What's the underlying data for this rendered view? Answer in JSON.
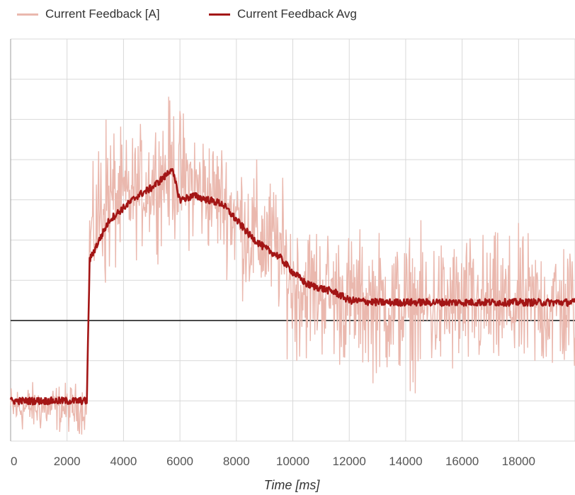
{
  "chart_data": {
    "type": "line",
    "title": "",
    "xlabel": "Time [ms]",
    "ylabel": "",
    "xlim": [
      0,
      20000
    ],
    "ylim": [
      -3,
      7
    ],
    "x_ticks": [
      0,
      2000,
      4000,
      6000,
      8000,
      10000,
      12000,
      14000,
      16000,
      18000
    ],
    "y_tick_labels_shown": false,
    "grid": true,
    "zero_line": 0,
    "legend_position": "top-left",
    "sample_interval_ms": 20,
    "series": [
      {
        "name": "Current Feedback [A]",
        "color": "#eab8ae",
        "style": "noisy raw signal",
        "envelope": [
          {
            "x": 0,
            "low": -2.75,
            "high": -1.6
          },
          {
            "x": 2700,
            "low": -2.75,
            "high": -1.6
          },
          {
            "x": 2800,
            "low": 1.0,
            "high": 3.0
          },
          {
            "x": 3300,
            "low": 0.8,
            "high": 5.2
          },
          {
            "x": 4000,
            "low": 1.6,
            "high": 4.4
          },
          {
            "x": 5000,
            "low": 2.0,
            "high": 4.9
          },
          {
            "x": 5700,
            "low": 2.1,
            "high": 5.4
          },
          {
            "x": 6500,
            "low": 1.9,
            "high": 4.8
          },
          {
            "x": 7500,
            "low": 1.6,
            "high": 4.4
          },
          {
            "x": 8500,
            "low": 0.5,
            "high": 3.8
          },
          {
            "x": 9500,
            "low": 0.2,
            "high": 3.4
          },
          {
            "x": 10000,
            "low": -0.9,
            "high": 2.6
          },
          {
            "x": 11000,
            "low": -0.8,
            "high": 2.3
          },
          {
            "x": 12000,
            "low": -1.1,
            "high": 2.1
          },
          {
            "x": 14000,
            "low": -1.4,
            "high": 2.0
          },
          {
            "x": 16000,
            "low": -1.3,
            "high": 2.0
          },
          {
            "x": 18000,
            "low": -1.3,
            "high": 2.0
          },
          {
            "x": 20000,
            "low": -1.3,
            "high": 2.0
          }
        ]
      },
      {
        "name": "Current Feedback Avg",
        "color": "#a31515",
        "style": "smoothed average",
        "points": [
          {
            "x": 0,
            "y": -2.0
          },
          {
            "x": 2700,
            "y": -2.0
          },
          {
            "x": 2800,
            "y": 1.5
          },
          {
            "x": 3000,
            "y": 1.8
          },
          {
            "x": 3500,
            "y": 2.5
          },
          {
            "x": 4000,
            "y": 2.8
          },
          {
            "x": 4500,
            "y": 3.1
          },
          {
            "x": 5000,
            "y": 3.3
          },
          {
            "x": 5500,
            "y": 3.6
          },
          {
            "x": 5700,
            "y": 3.8
          },
          {
            "x": 6000,
            "y": 3.0
          },
          {
            "x": 6500,
            "y": 3.1
          },
          {
            "x": 7000,
            "y": 3.0
          },
          {
            "x": 7500,
            "y": 2.9
          },
          {
            "x": 8000,
            "y": 2.5
          },
          {
            "x": 8500,
            "y": 2.1
          },
          {
            "x": 9000,
            "y": 1.8
          },
          {
            "x": 9500,
            "y": 1.6
          },
          {
            "x": 10000,
            "y": 1.2
          },
          {
            "x": 10500,
            "y": 0.9
          },
          {
            "x": 11000,
            "y": 0.8
          },
          {
            "x": 11500,
            "y": 0.7
          },
          {
            "x": 12000,
            "y": 0.5
          },
          {
            "x": 13000,
            "y": 0.45
          },
          {
            "x": 14000,
            "y": 0.45
          },
          {
            "x": 16000,
            "y": 0.45
          },
          {
            "x": 18000,
            "y": 0.45
          },
          {
            "x": 20000,
            "y": 0.45
          }
        ]
      }
    ]
  }
}
